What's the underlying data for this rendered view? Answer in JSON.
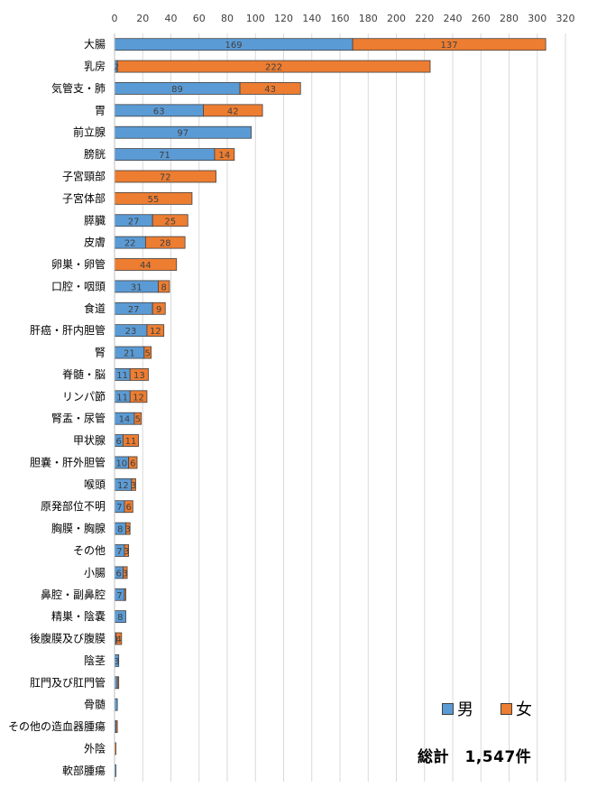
{
  "chart_data": {
    "type": "bar",
    "orientation": "horizontal",
    "stacked": true,
    "xlim": [
      0,
      320
    ],
    "xticks": [
      0,
      20,
      40,
      60,
      80,
      100,
      120,
      140,
      160,
      180,
      200,
      220,
      240,
      260,
      280,
      300,
      320
    ],
    "grid": true,
    "legend_position": "bottom-right",
    "categories": [
      "大腸",
      "乳房",
      "気管支・肺",
      "胃",
      "前立腺",
      "膀胱",
      "子宮頸部",
      "子宮体部",
      "膵臓",
      "皮膚",
      "卵巣・卵管",
      "口腔・咽頭",
      "食道",
      "肝癌・肝内胆管",
      "腎",
      "脊髄・脳",
      "リンパ節",
      "腎盂・尿管",
      "甲状腺",
      "胆嚢・肝外胆管",
      "喉頭",
      "原発部位不明",
      "胸膜・胸腺",
      "その他",
      "小腸",
      "鼻腔・副鼻腔",
      "精巣・陰嚢",
      "後腹膜及び腹膜",
      "陰茎",
      "肛門及び肛門管",
      "骨髄",
      "その他の造血器腫瘍",
      "外陰",
      "軟部腫瘍"
    ],
    "series": [
      {
        "name": "男",
        "color": "#5B9BD5",
        "values": [
          169,
          2,
          89,
          63,
          97,
          71,
          0,
          0,
          27,
          22,
          0,
          31,
          27,
          23,
          21,
          11,
          11,
          14,
          6,
          10,
          12,
          7,
          8,
          7,
          6,
          7,
          8,
          1,
          3,
          2,
          2,
          1,
          0,
          1
        ]
      },
      {
        "name": "女",
        "color": "#ED7D31",
        "values": [
          137,
          222,
          43,
          42,
          0,
          14,
          72,
          55,
          25,
          28,
          44,
          8,
          9,
          12,
          5,
          13,
          12,
          5,
          11,
          6,
          3,
          6,
          3,
          3,
          3,
          1,
          0,
          4,
          0,
          1,
          0,
          1,
          1,
          0
        ]
      }
    ],
    "labels": {
      "series0": [
        "169",
        "2",
        "89",
        "63",
        "97",
        "71",
        "",
        "",
        "27",
        "22",
        "",
        "31",
        "27",
        "23",
        "21",
        "11",
        "11",
        "14",
        "6",
        "10",
        "12",
        "7",
        "8",
        "7",
        "6",
        "7",
        "8",
        "1",
        "3",
        "",
        "",
        "",
        "",
        ""
      ],
      "series1": [
        "137",
        "222",
        "43",
        "42",
        "",
        "14",
        "72",
        "55",
        "25",
        "28",
        "44",
        "8",
        "9",
        "12",
        "5",
        "13",
        "12",
        "5",
        "11",
        "6",
        "3",
        "6",
        "3",
        "3",
        "3",
        "",
        "",
        "4",
        "",
        "",
        "",
        "",
        "",
        ""
      ]
    }
  },
  "legend": {
    "male_label": "男",
    "female_label": "女"
  },
  "total": {
    "text": "総計　1,547件"
  }
}
